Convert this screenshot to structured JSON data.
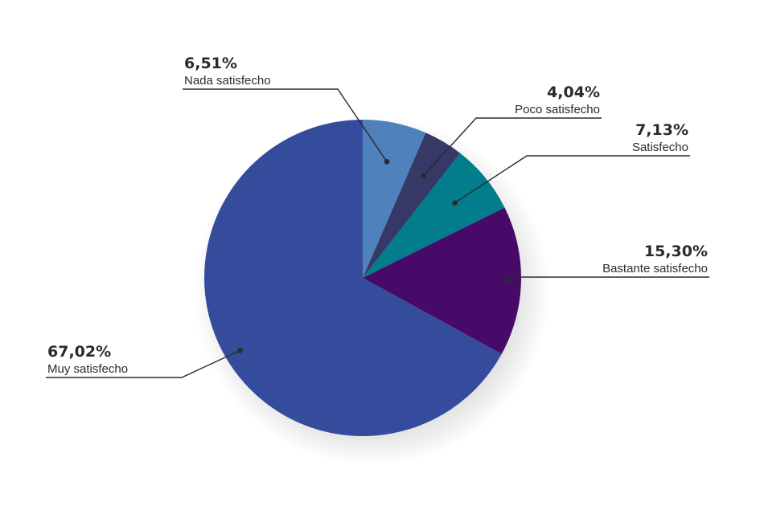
{
  "chart_data": {
    "type": "pie",
    "start_angle_deg": 0,
    "direction": "clockwise",
    "slices": [
      {
        "label": "Nada satisfecho",
        "value": 6.51,
        "display": "6,51%",
        "color": "#4f81bd"
      },
      {
        "label": "Poco satisfecho",
        "value": 4.04,
        "display": "4,04%",
        "color": "#363866"
      },
      {
        "label": "Satisfecho",
        "value": 7.13,
        "display": "7,13%",
        "color": "#017d8b"
      },
      {
        "label": "Bastante satisfecho",
        "value": 15.3,
        "display": "15,30%",
        "color": "#470a68"
      },
      {
        "label": "Muy satisfecho",
        "value": 67.02,
        "display": "67,02%",
        "color": "#354c9c"
      }
    ]
  }
}
